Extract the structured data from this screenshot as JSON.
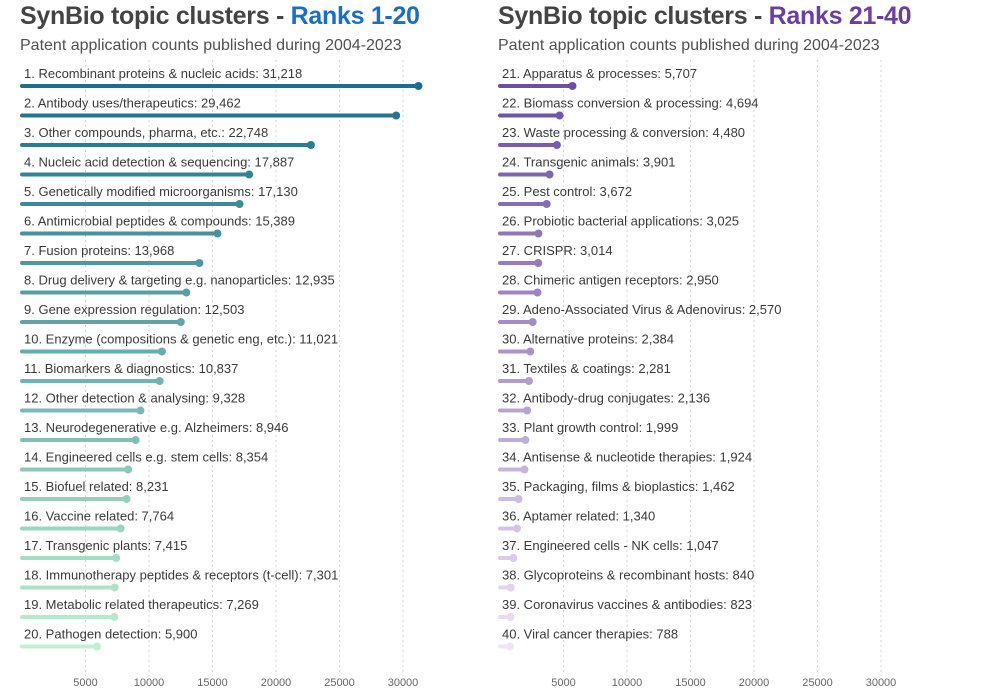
{
  "chart_data": [
    {
      "type": "bar",
      "title_prefix": "SynBio topic clusters - ",
      "title_highlight": "Ranks 1-20",
      "subtitle": "Patent application counts published during 2004-2023",
      "accent_color": "#1a6fc4",
      "xlim": [
        0,
        31500
      ],
      "xticks": [
        5000,
        10000,
        15000,
        20000,
        25000,
        30000
      ],
      "color_start": "#1a6f8c",
      "color_end": "#bff0cf",
      "categories": [
        "1. Recombinant proteins & nucleic acids: 31,218",
        "2. Antibody uses/therapeutics: 29,462",
        "3. Other compounds, pharma, etc.: 22,748",
        "4. Nucleic acid detection & sequencing: 17,887",
        "5. Genetically modified microorganisms: 17,130",
        "6. Antimicrobial peptides & compounds: 15,389",
        "7. Fusion proteins: 13,968",
        "8. Drug delivery & targeting e.g. nanoparticles: 12,935",
        "9. Gene expression regulation: 12,503",
        "10. Enzyme (compositions & genetic eng, etc.): 11,021",
        "11. Biomarkers & diagnostics: 10,837",
        "12. Other detection & analysing: 9,328",
        "13. Neurodegenerative e.g. Alzheimers: 8,946",
        "14. Engineered cells e.g. stem cells: 8,354",
        "15. Biofuel related: 8,231",
        "16. Vaccine related: 7,764",
        "17. Transgenic plants: 7,415",
        "18. Immunotherapy peptides & receptors (t-cell): 7,301",
        "19. Metabolic related therapeutics: 7,269",
        "20. Pathogen detection: 5,900"
      ],
      "values": [
        31218,
        29462,
        22748,
        17887,
        17130,
        15389,
        13968,
        12935,
        12503,
        11021,
        10837,
        9328,
        8946,
        8354,
        8231,
        7764,
        7415,
        7301,
        7269,
        5900
      ]
    },
    {
      "type": "bar",
      "title_prefix": "SynBio topic clusters - ",
      "title_highlight": "Ranks 21-40",
      "subtitle": "Patent application counts published during 2004-2023",
      "accent_color": "#6a3fa0",
      "xlim": [
        0,
        31500
      ],
      "xticks": [
        5000,
        10000,
        15000,
        20000,
        25000,
        30000
      ],
      "color_start": "#6a4fa3",
      "color_end": "#f1e2f6",
      "categories": [
        "21. Apparatus & processes: 5,707",
        "22. Biomass conversion & processing: 4,694",
        "23. Waste processing & conversion: 4,480",
        "24. Transgenic animals: 3,901",
        "25. Pest control: 3,672",
        "26. Probiotic bacterial applications: 3,025",
        "27. CRISPR: 3,014",
        "28. Chimeric antigen receptors: 2,950",
        "29. Adeno-Associated Virus & Adenovirus: 2,570",
        "30. Alternative proteins: 2,384",
        "31. Textiles & coatings: 2,281",
        "32. Antibody-drug conjugates: 2,136",
        "33. Plant growth control: 1,999",
        "34. Antisense & nucleotide therapies: 1,924",
        "35. Packaging, films & bioplastics: 1,462",
        "36. Aptamer related: 1,340",
        "37. Engineered cells - NK cells: 1,047",
        "38. Glycoproteins & recombinant hosts: 840",
        "39. Coronavirus vaccines & antibodies: 823",
        "40. Viral cancer therapies: 788"
      ],
      "values": [
        5707,
        4694,
        4480,
        3901,
        3672,
        3025,
        3014,
        2950,
        2570,
        2384,
        2281,
        2136,
        1999,
        1924,
        1462,
        1340,
        1047,
        840,
        823,
        788
      ]
    }
  ]
}
